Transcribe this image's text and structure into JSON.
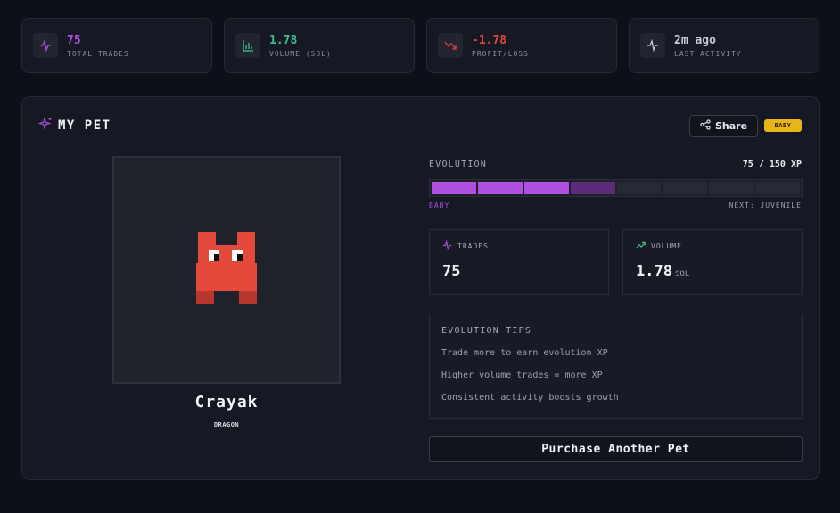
{
  "stats": [
    {
      "icon": "activity-icon",
      "value": "75",
      "label": "TOTAL TRADES",
      "color": "#b04ee0"
    },
    {
      "icon": "bar-chart-icon",
      "value": "1.78",
      "label": "VOLUME (SOL)",
      "color": "#3fbf8c"
    },
    {
      "icon": "trending-down-icon",
      "value": "-1.78",
      "label": "PROFIT/LOSS",
      "color": "#e0453a"
    },
    {
      "icon": "activity-icon",
      "value": "2m ago",
      "label": "LAST ACTIVITY",
      "color": "#c9ccd4"
    }
  ],
  "pet": {
    "title": "MY PET",
    "share_label": "Share",
    "stage_badge": "BABY",
    "name": "Crayak",
    "species": "DRAGON",
    "evolution": {
      "label": "EVOLUTION",
      "xp_text": "75 / 150 XP",
      "progress": 0.5,
      "current_stage": "BABY",
      "next_stage": "NEXT: JUVENILE"
    },
    "trades": {
      "label": "TRADES",
      "value": "75"
    },
    "volume": {
      "label": "VOLUME",
      "value": "1.78",
      "unit": "SOL"
    },
    "tips": {
      "title": "EVOLUTION TIPS",
      "items": [
        "Trade more to earn evolution XP",
        "Higher volume trades = more XP",
        "Consistent activity boosts growth"
      ]
    },
    "purchase_label": "Purchase Another Pet"
  },
  "colors": {
    "accent": "#b04ee0",
    "badge": "#e7b419",
    "pet_body": "#e34a3c"
  }
}
